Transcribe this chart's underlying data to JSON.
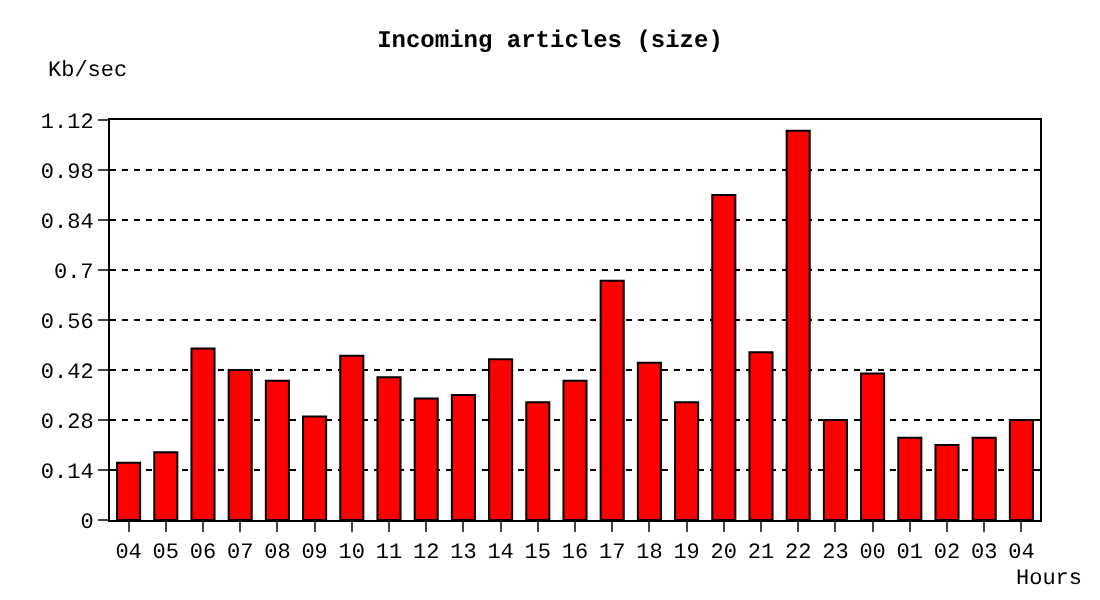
{
  "chart_data": {
    "type": "bar",
    "title": "Incoming articles (size)",
    "xlabel": "Hours",
    "ylabel": "Kb/sec",
    "categories": [
      "04",
      "05",
      "06",
      "07",
      "08",
      "09",
      "10",
      "11",
      "12",
      "13",
      "14",
      "15",
      "16",
      "17",
      "18",
      "19",
      "20",
      "21",
      "22",
      "23",
      "00",
      "01",
      "02",
      "03",
      "04"
    ],
    "values": [
      0.16,
      0.19,
      0.48,
      0.42,
      0.39,
      0.29,
      0.46,
      0.4,
      0.34,
      0.35,
      0.45,
      0.33,
      0.39,
      0.67,
      0.44,
      0.33,
      0.91,
      0.47,
      1.09,
      0.28,
      0.41,
      0.23,
      0.21,
      0.23,
      0.28
    ],
    "color": "#ff0000",
    "ylim": [
      0,
      1.12
    ],
    "yticks": [
      0,
      0.14,
      0.28,
      0.42,
      0.56,
      0.7,
      0.84,
      0.98,
      1.12
    ],
    "grid": "y"
  }
}
